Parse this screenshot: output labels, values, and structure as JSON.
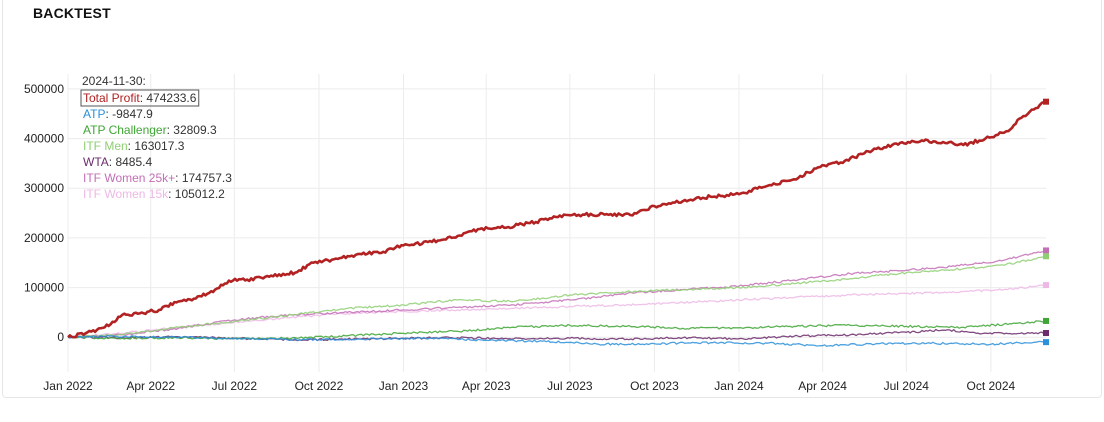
{
  "panel": {
    "title": "BACKTEST"
  },
  "chart_data": {
    "type": "line",
    "title": "",
    "xlabel": "",
    "ylabel": "",
    "x_range": [
      "2022-01-01",
      "2024-11-30"
    ],
    "ylim": [
      -70000,
      530000
    ],
    "grid": true,
    "legend": "none",
    "x_ticks": [
      "Jan 2022",
      "Apr 2022",
      "Jul 2022",
      "Oct 2022",
      "Jan 2023",
      "Apr 2023",
      "Jul 2023",
      "Oct 2023",
      "Jan 2024",
      "Apr 2024",
      "Jul 2024",
      "Oct 2024"
    ],
    "y_ticks": [
      0,
      100000,
      200000,
      300000,
      400000,
      500000
    ],
    "y_tick_labels": [
      "0",
      "100000",
      "200000",
      "300000",
      "400000",
      "500000"
    ],
    "tooltip": {
      "date": "2024-11-30:"
    },
    "series": [
      {
        "name": "Total Profit",
        "color": "#b22222",
        "width": 2.6,
        "label_value": "474233.6",
        "highlight": true,
        "points": [
          [
            "2022-01-01",
            0
          ],
          [
            "2022-01-20",
            8000
          ],
          [
            "2022-02-10",
            20000
          ],
          [
            "2022-03-01",
            45000
          ],
          [
            "2022-03-20",
            48000
          ],
          [
            "2022-04-10",
            55000
          ],
          [
            "2022-05-01",
            72000
          ],
          [
            "2022-05-20",
            78000
          ],
          [
            "2022-06-10",
            96000
          ],
          [
            "2022-06-25",
            114000
          ],
          [
            "2022-07-15",
            116000
          ],
          [
            "2022-08-10",
            124000
          ],
          [
            "2022-09-05",
            130000
          ],
          [
            "2022-09-25",
            150000
          ],
          [
            "2022-10-15",
            156000
          ],
          [
            "2022-11-10",
            166000
          ],
          [
            "2022-12-10",
            172000
          ],
          [
            "2023-01-01",
            185000
          ],
          [
            "2023-02-01",
            192000
          ],
          [
            "2023-03-01",
            204000
          ],
          [
            "2023-03-25",
            218000
          ],
          [
            "2023-04-25",
            222000
          ],
          [
            "2023-05-25",
            232000
          ],
          [
            "2023-06-20",
            245000
          ],
          [
            "2023-07-15",
            247000
          ],
          [
            "2023-08-10",
            248000
          ],
          [
            "2023-09-05",
            246000
          ],
          [
            "2023-10-01",
            264000
          ],
          [
            "2023-11-01",
            274000
          ],
          [
            "2023-12-01",
            283000
          ],
          [
            "2024-01-01",
            288000
          ],
          [
            "2024-02-01",
            305000
          ],
          [
            "2024-03-01",
            318000
          ],
          [
            "2024-03-25",
            340000
          ],
          [
            "2024-04-25",
            355000
          ],
          [
            "2024-05-25",
            376000
          ],
          [
            "2024-06-20",
            390000
          ],
          [
            "2024-07-20",
            395000
          ],
          [
            "2024-08-10",
            393000
          ],
          [
            "2024-09-01",
            387000
          ],
          [
            "2024-09-25",
            400000
          ],
          [
            "2024-10-20",
            415000
          ],
          [
            "2024-11-01",
            440000
          ],
          [
            "2024-11-30",
            474234
          ]
        ]
      },
      {
        "name": "ATP",
        "color": "#2b8fd9",
        "width": 1.3,
        "label_value": "-9847.9",
        "points": [
          [
            "2022-01-01",
            0
          ],
          [
            "2022-02-15",
            2000
          ],
          [
            "2022-04-15",
            1000
          ],
          [
            "2022-06-10",
            -2000
          ],
          [
            "2022-08-01",
            -3000
          ],
          [
            "2022-10-01",
            -5000
          ],
          [
            "2022-12-01",
            -3000
          ],
          [
            "2023-02-01",
            -2000
          ],
          [
            "2023-04-01",
            -6000
          ],
          [
            "2023-06-01",
            -8000
          ],
          [
            "2023-08-01",
            -14000
          ],
          [
            "2023-10-01",
            -13000
          ],
          [
            "2023-12-01",
            -11000
          ],
          [
            "2024-02-01",
            -12000
          ],
          [
            "2024-04-01",
            -17000
          ],
          [
            "2024-06-01",
            -13000
          ],
          [
            "2024-08-01",
            -12000
          ],
          [
            "2024-10-01",
            -14000
          ],
          [
            "2024-11-30",
            -9848
          ]
        ]
      },
      {
        "name": "ATP Challenger",
        "color": "#3fa535",
        "width": 1.3,
        "label_value": "32809.3",
        "points": [
          [
            "2022-01-01",
            0
          ],
          [
            "2022-03-01",
            -2000
          ],
          [
            "2022-05-01",
            -1000
          ],
          [
            "2022-07-01",
            -3000
          ],
          [
            "2022-09-01",
            -2000
          ],
          [
            "2022-11-01",
            3000
          ],
          [
            "2023-01-01",
            8000
          ],
          [
            "2023-03-01",
            12000
          ],
          [
            "2023-05-01",
            20000
          ],
          [
            "2023-07-01",
            24000
          ],
          [
            "2023-09-01",
            22000
          ],
          [
            "2023-11-01",
            18000
          ],
          [
            "2024-01-01",
            19000
          ],
          [
            "2024-03-01",
            22000
          ],
          [
            "2024-05-01",
            24000
          ],
          [
            "2024-07-01",
            22000
          ],
          [
            "2024-09-01",
            20000
          ],
          [
            "2024-10-15",
            26000
          ],
          [
            "2024-11-30",
            32809
          ]
        ]
      },
      {
        "name": "ITF Men",
        "color": "#8fcf73",
        "width": 1.3,
        "label_value": "163017.3",
        "points": [
          [
            "2022-01-01",
            0
          ],
          [
            "2022-03-01",
            5000
          ],
          [
            "2022-05-01",
            20000
          ],
          [
            "2022-07-01",
            32000
          ],
          [
            "2022-09-01",
            45000
          ],
          [
            "2022-11-01",
            58000
          ],
          [
            "2023-01-01",
            65000
          ],
          [
            "2023-03-01",
            75000
          ],
          [
            "2023-05-01",
            72000
          ],
          [
            "2023-07-01",
            85000
          ],
          [
            "2023-09-01",
            92000
          ],
          [
            "2023-11-01",
            96000
          ],
          [
            "2024-01-01",
            100000
          ],
          [
            "2024-03-01",
            108000
          ],
          [
            "2024-05-01",
            118000
          ],
          [
            "2024-07-01",
            130000
          ],
          [
            "2024-09-01",
            138000
          ],
          [
            "2024-10-15",
            145000
          ],
          [
            "2024-11-30",
            163017
          ]
        ]
      },
      {
        "name": "WTA",
        "color": "#6b2c6b",
        "width": 1.3,
        "label_value": "8485.4",
        "points": [
          [
            "2022-01-01",
            0
          ],
          [
            "2022-03-01",
            -1000
          ],
          [
            "2022-05-01",
            1000
          ],
          [
            "2022-07-01",
            -2000
          ],
          [
            "2022-09-01",
            -5000
          ],
          [
            "2022-11-01",
            -4000
          ],
          [
            "2023-01-01",
            -2000
          ],
          [
            "2023-03-01",
            -1000
          ],
          [
            "2023-05-01",
            -3000
          ],
          [
            "2023-07-01",
            -2000
          ],
          [
            "2023-09-01",
            -4000
          ],
          [
            "2023-11-01",
            -1000
          ],
          [
            "2024-01-01",
            -3000
          ],
          [
            "2024-03-01",
            2000
          ],
          [
            "2024-05-01",
            5000
          ],
          [
            "2024-07-01",
            10000
          ],
          [
            "2024-08-15",
            15000
          ],
          [
            "2024-09-15",
            8000
          ],
          [
            "2024-11-30",
            8485
          ]
        ]
      },
      {
        "name": "ITF Women 25k+",
        "color": "#c36fb6",
        "width": 1.3,
        "label_value": "174757.3",
        "points": [
          [
            "2022-01-01",
            0
          ],
          [
            "2022-03-01",
            5000
          ],
          [
            "2022-05-01",
            18000
          ],
          [
            "2022-07-01",
            35000
          ],
          [
            "2022-09-01",
            45000
          ],
          [
            "2022-11-01",
            50000
          ],
          [
            "2023-01-01",
            55000
          ],
          [
            "2023-03-01",
            60000
          ],
          [
            "2023-05-01",
            65000
          ],
          [
            "2023-07-01",
            75000
          ],
          [
            "2023-09-01",
            88000
          ],
          [
            "2023-11-01",
            96000
          ],
          [
            "2024-01-01",
            103000
          ],
          [
            "2024-03-01",
            115000
          ],
          [
            "2024-05-01",
            128000
          ],
          [
            "2024-07-01",
            135000
          ],
          [
            "2024-09-01",
            145000
          ],
          [
            "2024-10-15",
            155000
          ],
          [
            "2024-11-30",
            174757
          ]
        ]
      },
      {
        "name": "ITF Women 15k",
        "color": "#edb8e6",
        "width": 1.3,
        "label_value": "105012.2",
        "points": [
          [
            "2022-01-01",
            0
          ],
          [
            "2022-03-01",
            8000
          ],
          [
            "2022-05-01",
            20000
          ],
          [
            "2022-07-01",
            30000
          ],
          [
            "2022-09-01",
            40000
          ],
          [
            "2022-11-01",
            48000
          ],
          [
            "2023-01-01",
            52000
          ],
          [
            "2023-03-01",
            55000
          ],
          [
            "2023-05-01",
            58000
          ],
          [
            "2023-07-01",
            62000
          ],
          [
            "2023-09-01",
            65000
          ],
          [
            "2023-11-01",
            70000
          ],
          [
            "2024-01-01",
            75000
          ],
          [
            "2024-03-01",
            80000
          ],
          [
            "2024-05-01",
            85000
          ],
          [
            "2024-07-01",
            88000
          ],
          [
            "2024-09-01",
            92000
          ],
          [
            "2024-10-15",
            96000
          ],
          [
            "2024-11-30",
            105012
          ]
        ]
      }
    ]
  }
}
